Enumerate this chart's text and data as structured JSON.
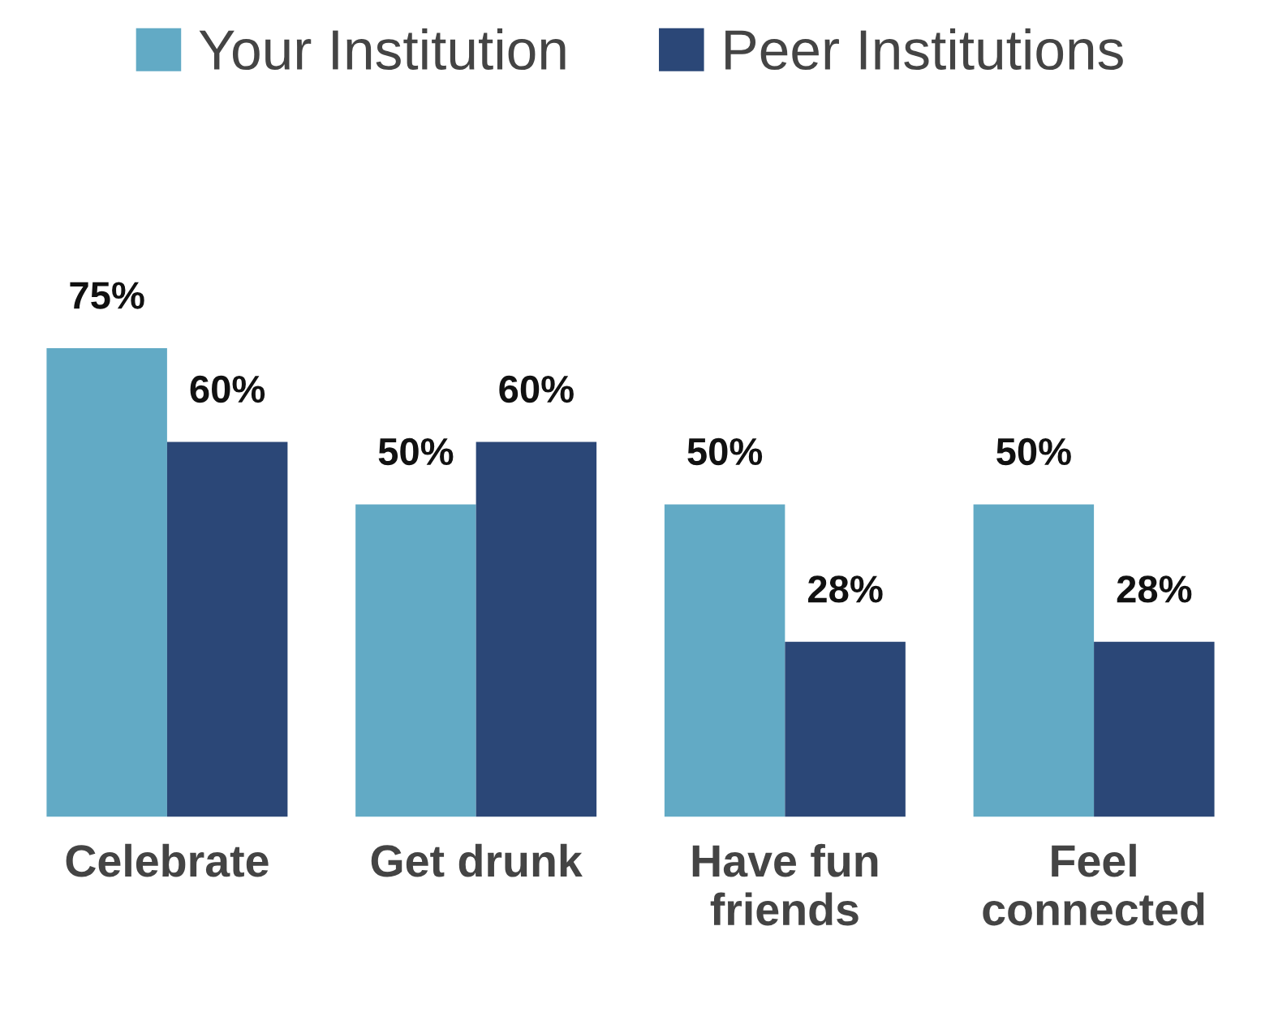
{
  "chart_data": {
    "type": "bar",
    "categories": [
      "Celebrate",
      "Get drunk",
      "Have fun\nfriends",
      "Feel\nconnected"
    ],
    "series": [
      {
        "name": "Your Institution",
        "color": "#62aac5",
        "values": [
          75,
          50,
          50,
          50
        ],
        "value_labels": [
          "75%",
          "50%",
          "50%",
          "50%"
        ]
      },
      {
        "name": "Peer Institutions",
        "color": "#2b4777",
        "values": [
          60,
          60,
          28,
          28
        ],
        "value_labels": [
          "60%",
          "60%",
          "28%",
          "28%"
        ]
      }
    ],
    "legend": "top",
    "grid": false
  }
}
